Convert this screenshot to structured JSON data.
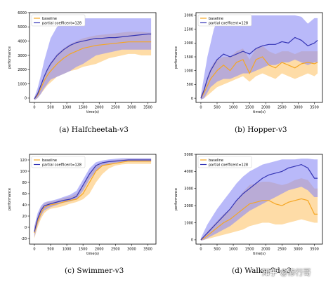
{
  "colors": {
    "baseline": "#f5a623",
    "baseline_band": "#fdd08a",
    "partial": "#3535b5",
    "partial_band": "#8a8af5"
  },
  "legend": {
    "baseline_label": "baseline",
    "partial_label": "partial coefficent=128",
    "placement": "top-left"
  },
  "watermark": "知乎 @修行哥",
  "chart_data": [
    {
      "type": "line",
      "caption": "(a)  Halfcheetah-v3",
      "xlabel": "time(s)",
      "ylabel": "performance",
      "xlim": [
        -150,
        3750
      ],
      "ylim": [
        -300,
        6000
      ],
      "xticks": [
        0,
        500,
        1000,
        1500,
        2000,
        2500,
        3000,
        3500
      ],
      "yticks": [
        0,
        1000,
        2000,
        3000,
        4000,
        5000,
        6000
      ],
      "x": [
        0,
        100,
        200,
        300,
        400,
        500,
        700,
        900,
        1100,
        1300,
        1500,
        1700,
        1900,
        2100,
        2300,
        2500,
        2700,
        2900,
        3100,
        3300,
        3500,
        3600
      ],
      "series": [
        {
          "name": "baseline",
          "values": [
            -50,
            200,
            700,
            1200,
            1600,
            1900,
            2400,
            2800,
            3100,
            3300,
            3500,
            3600,
            3700,
            3750,
            3800,
            3850,
            3900,
            3950,
            3950,
            3950,
            3950,
            3950
          ],
          "lower": [
            -150,
            0,
            300,
            600,
            900,
            1100,
            1500,
            1700,
            1900,
            2000,
            2200,
            2300,
            2400,
            2600,
            2800,
            2900,
            3000,
            3100,
            3100,
            3000,
            3000,
            3000
          ],
          "upper": [
            50,
            400,
            1000,
            1600,
            2100,
            2500,
            3100,
            3500,
            3800,
            4000,
            4200,
            4300,
            4400,
            4450,
            4500,
            4550,
            4600,
            4650,
            4650,
            4650,
            4600,
            4600
          ]
        },
        {
          "name": "partial coefficent=128",
          "values": [
            -50,
            300,
            900,
            1500,
            2000,
            2400,
            3000,
            3400,
            3700,
            3900,
            4000,
            4100,
            4200,
            4200,
            4250,
            4250,
            4300,
            4350,
            4400,
            4450,
            4500,
            4500
          ],
          "lower": [
            -150,
            0,
            300,
            700,
            1000,
            1300,
            1500,
            1700,
            1900,
            2200,
            2400,
            2700,
            3000,
            3100,
            3200,
            3300,
            3400,
            3400,
            3400,
            3400,
            3400,
            3400
          ],
          "upper": [
            50,
            700,
            1600,
            2600,
            3400,
            4200,
            5000,
            5300,
            5500,
            5600,
            5600,
            5600,
            5600,
            5600,
            5600,
            5600,
            5600,
            5600,
            5600,
            5600,
            5600,
            5600
          ]
        }
      ]
    },
    {
      "type": "line",
      "caption": "(b)  Hopper-v3",
      "xlabel": "time(s)",
      "ylabel": "performance",
      "xlim": [
        -150,
        3750
      ],
      "ylim": [
        -150,
        3100
      ],
      "xticks": [
        0,
        500,
        1000,
        1500,
        2000,
        2500,
        3000,
        3500
      ],
      "yticks": [
        0,
        500,
        1000,
        1500,
        2000,
        2500,
        3000
      ],
      "x": [
        0,
        100,
        200,
        300,
        400,
        500,
        700,
        900,
        1100,
        1300,
        1500,
        1700,
        1900,
        2100,
        2300,
        2500,
        2700,
        2900,
        3100,
        3300,
        3500,
        3600
      ],
      "series": [
        {
          "name": "baseline",
          "values": [
            0,
            200,
            450,
            700,
            850,
            1000,
            1200,
            1000,
            1300,
            1400,
            900,
            1400,
            1500,
            1200,
            1100,
            1300,
            1200,
            1100,
            1250,
            1300,
            1250,
            1300
          ],
          "lower": [
            -50,
            0,
            100,
            200,
            300,
            400,
            500,
            600,
            700,
            800,
            600,
            800,
            900,
            800,
            700,
            900,
            800,
            700,
            800,
            900,
            800,
            900
          ],
          "upper": [
            100,
            400,
            800,
            1100,
            1300,
            1400,
            1500,
            1500,
            1700,
            1800,
            1400,
            1800,
            1900,
            1700,
            1600,
            1700,
            1700,
            1600,
            1700,
            1700,
            1700,
            1700
          ]
        },
        {
          "name": "partial coefficent=128",
          "values": [
            0,
            300,
            700,
            1000,
            1200,
            1400,
            1600,
            1500,
            1600,
            1700,
            1600,
            1800,
            1900,
            1950,
            1950,
            2050,
            2000,
            2200,
            2100,
            1900,
            2000,
            2100
          ],
          "lower": [
            -50,
            0,
            200,
            400,
            500,
            600,
            700,
            700,
            800,
            900,
            900,
            1000,
            1100,
            1200,
            1200,
            1300,
            1300,
            1400,
            1300,
            1200,
            1300,
            1300
          ],
          "upper": [
            100,
            800,
            1500,
            2000,
            2500,
            2800,
            3000,
            3000,
            3000,
            3000,
            3000,
            3000,
            3000,
            3000,
            3000,
            3000,
            3000,
            3000,
            2950,
            2700,
            2900,
            2900
          ]
        }
      ]
    },
    {
      "type": "line",
      "caption": "(c)  Swimmer-v3",
      "xlabel": "time(s)",
      "ylabel": "performance",
      "xlim": [
        -150,
        3750
      ],
      "ylim": [
        -30,
        130
      ],
      "xticks": [
        0,
        500,
        1000,
        1500,
        2000,
        2500,
        3000,
        3500
      ],
      "yticks": [
        -20,
        0,
        20,
        40,
        60,
        80,
        100,
        120
      ],
      "x": [
        0,
        100,
        200,
        300,
        400,
        500,
        700,
        900,
        1100,
        1300,
        1500,
        1700,
        1900,
        2100,
        2300,
        2500,
        2700,
        2900,
        3100,
        3300,
        3500,
        3600
      ],
      "series": [
        {
          "name": "baseline",
          "values": [
            -10,
            10,
            25,
            35,
            38,
            40,
            42,
            45,
            48,
            50,
            60,
            80,
            100,
            110,
            112,
            114,
            116,
            118,
            118,
            118,
            118,
            118
          ],
          "lower": [
            -20,
            0,
            15,
            25,
            30,
            33,
            35,
            38,
            42,
            45,
            50,
            60,
            80,
            95,
            105,
            110,
            112,
            113,
            113,
            113,
            113,
            113
          ],
          "upper": [
            0,
            20,
            35,
            42,
            45,
            46,
            48,
            52,
            55,
            60,
            75,
            95,
            110,
            116,
            118,
            120,
            121,
            122,
            122,
            122,
            122,
            122
          ]
        },
        {
          "name": "partial coefficent=128",
          "values": [
            -8,
            15,
            30,
            38,
            40,
            42,
            45,
            48,
            50,
            55,
            75,
            95,
            110,
            115,
            117,
            118,
            119,
            120,
            120,
            120,
            120,
            120
          ],
          "lower": [
            -18,
            5,
            20,
            30,
            33,
            36,
            40,
            44,
            46,
            50,
            65,
            85,
            100,
            110,
            113,
            115,
            116,
            117,
            117,
            117,
            117,
            117
          ],
          "upper": [
            2,
            25,
            38,
            44,
            46,
            47,
            50,
            54,
            58,
            65,
            85,
            105,
            116,
            119,
            121,
            122,
            123,
            123,
            123,
            123,
            123,
            123
          ]
        }
      ]
    },
    {
      "type": "line",
      "caption": "(d)  Walker2d-v3",
      "xlabel": "time(s)",
      "ylabel": "performance",
      "xlim": [
        -150,
        3750
      ],
      "ylim": [
        -250,
        5000
      ],
      "xticks": [
        0,
        500,
        1000,
        1500,
        2000,
        2500,
        3000,
        3500
      ],
      "yticks": [
        0,
        1000,
        2000,
        3000,
        4000,
        5000
      ],
      "x": [
        0,
        100,
        200,
        300,
        400,
        500,
        700,
        900,
        1100,
        1300,
        1500,
        1700,
        1900,
        2100,
        2300,
        2500,
        2700,
        2900,
        3100,
        3300,
        3500,
        3600
      ],
      "series": [
        {
          "name": "baseline",
          "values": [
            0,
            100,
            250,
            400,
            550,
            700,
            1000,
            1200,
            1500,
            1800,
            2100,
            2200,
            2300,
            2300,
            2100,
            2000,
            2200,
            2300,
            2400,
            2300,
            1500,
            1500
          ],
          "lower": [
            -50,
            0,
            50,
            100,
            150,
            200,
            300,
            400,
            500,
            600,
            800,
            900,
            1000,
            1000,
            900,
            900,
            1000,
            1100,
            1200,
            1100,
            1000,
            1000
          ],
          "upper": [
            50,
            250,
            500,
            700,
            900,
            1100,
            1500,
            1800,
            2300,
            2800,
            3200,
            3300,
            3400,
            3400,
            3300,
            3200,
            3300,
            3500,
            3600,
            3500,
            3000,
            3000
          ]
        },
        {
          "name": "partial coefficent=128",
          "values": [
            0,
            200,
            400,
            600,
            800,
            1000,
            1400,
            1800,
            2300,
            2700,
            3000,
            3300,
            3600,
            3800,
            3900,
            4000,
            4200,
            4300,
            4400,
            4200,
            3600,
            3600
          ],
          "lower": [
            -50,
            0,
            100,
            200,
            300,
            400,
            600,
            800,
            1100,
            1400,
            1700,
            1900,
            2100,
            2300,
            2500,
            2700,
            2900,
            3000,
            3100,
            2900,
            2500,
            2500
          ],
          "upper": [
            100,
            500,
            900,
            1200,
            1500,
            1800,
            2300,
            2800,
            3300,
            3700,
            4000,
            4200,
            4400,
            4500,
            4600,
            4700,
            4700,
            4700,
            4750,
            4750,
            4700,
            4700
          ]
        }
      ]
    }
  ]
}
